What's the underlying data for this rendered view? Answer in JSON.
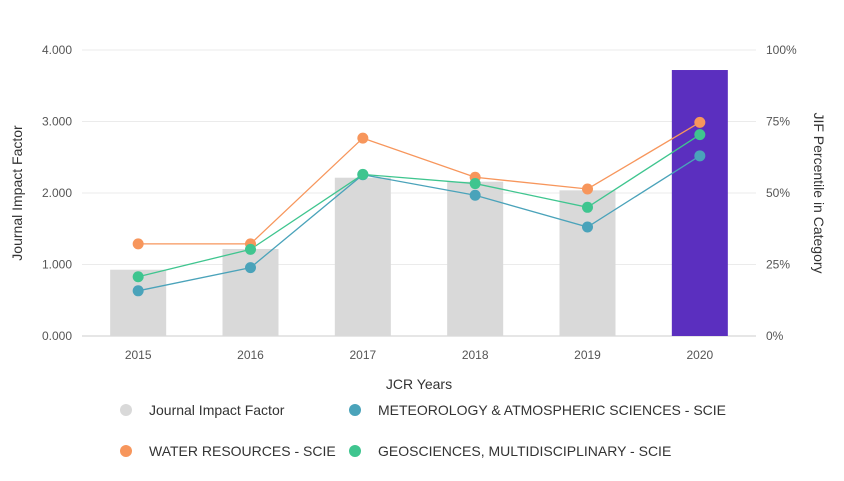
{
  "chart_data": {
    "type": "bar",
    "title": "",
    "xlabel": "JCR Years",
    "ylabel": "Journal Impact Factor",
    "y2label": "JIF Percentile in Category",
    "categories": [
      "2015",
      "2016",
      "2017",
      "2018",
      "2019",
      "2020"
    ],
    "ylim": [
      0,
      4
    ],
    "y2lim": [
      0,
      100
    ],
    "y_ticks": [
      "0.000",
      "1.000",
      "2.000",
      "3.000",
      "4.000"
    ],
    "y2_ticks": [
      "0%",
      "25%",
      "50%",
      "75%",
      "100%"
    ],
    "grid": true,
    "legend_position": "bottom",
    "bars": {
      "name": "Journal Impact Factor",
      "values": [
        0.927,
        1.217,
        2.214,
        2.158,
        2.037,
        3.72
      ],
      "color": "#d9d9d9",
      "highlight_color": "#5b2fbf",
      "highlight_index": 5
    },
    "series": [
      {
        "name": "METEOROLOGY & ATMOSPHERIC SCIENCES - SCIE",
        "axis": "right",
        "values": [
          15.8,
          23.9,
          56.4,
          49.2,
          38.1,
          63.0
        ],
        "color": "#4aa3ba"
      },
      {
        "name": "WATER RESOURCES - SCIE",
        "axis": "right",
        "values": [
          32.2,
          32.2,
          69.2,
          55.5,
          51.4,
          74.7
        ],
        "color": "#f7965c"
      },
      {
        "name": "GEOSCIENCES, MULTIDISCIPLINARY - SCIE",
        "axis": "right",
        "values": [
          20.7,
          30.3,
          56.5,
          53.3,
          45.0,
          70.4
        ],
        "color": "#3fc58f"
      }
    ]
  },
  "legend": [
    {
      "label": "Journal Impact Factor",
      "color": "#d9d9d9"
    },
    {
      "label": "METEOROLOGY & ATMOSPHERIC SCIENCES - SCIE",
      "color": "#4aa3ba"
    },
    {
      "label": "WATER RESOURCES - SCIE",
      "color": "#f7965c"
    },
    {
      "label": "GEOSCIENCES, MULTIDISCIPLINARY - SCIE",
      "color": "#3fc58f"
    }
  ]
}
